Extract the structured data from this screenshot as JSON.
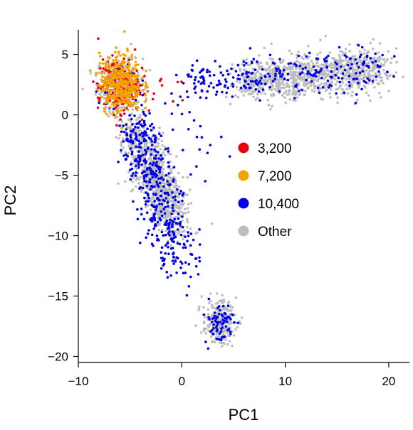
{
  "chart_data": {
    "type": "scatter",
    "title": "",
    "xlabel": "PC1",
    "ylabel": "PC2",
    "xlim": [
      -10,
      22
    ],
    "ylim": [
      -20.5,
      6.8
    ],
    "xticks": [
      -10,
      0,
      10,
      20
    ],
    "yticks": [
      5,
      0,
      -5,
      -10,
      -15,
      -20
    ],
    "xtick_labels": [
      "−10",
      "0",
      "10",
      "20"
    ],
    "ytick_labels": [
      "5",
      "0",
      "−5",
      "−10",
      "−15",
      "−20"
    ],
    "grid": false,
    "legend": {
      "placement": "center",
      "entries": [
        {
          "label": "3,200",
          "color": "#e8000b"
        },
        {
          "label": "7,200",
          "color": "#f5a100"
        },
        {
          "label": "10,400",
          "color": "#0000e6"
        },
        {
          "label": "Other",
          "color": "#bdbdbd"
        }
      ]
    },
    "series": [
      {
        "name": "Other",
        "color": "#bdbdbd",
        "clusters": [
          {
            "cx": -6.0,
            "cy": 2.3,
            "sx": 1.1,
            "sy": 1.2,
            "n": 220
          },
          {
            "segment": [
              [
                6,
                2.7
              ],
              [
                19.5,
                3.8
              ]
            ],
            "spread": 0.9,
            "n": 950
          },
          {
            "segment": [
              [
                -4.5,
                -1.5
              ],
              [
                -0.5,
                -9.0
              ]
            ],
            "spread": 0.9,
            "n": 850
          },
          {
            "cx": 3.6,
            "cy": -17.1,
            "sx": 0.8,
            "sy": 0.9,
            "n": 230
          }
        ]
      },
      {
        "name": "3,200",
        "color": "#e8000b",
        "clusters": [
          {
            "cx": -6.1,
            "cy": 2.4,
            "sx": 1.0,
            "sy": 1.1,
            "n": 230
          },
          {
            "cx": -2.5,
            "cy": 2.2,
            "sx": 2.0,
            "sy": 0.8,
            "n": 12
          }
        ]
      },
      {
        "name": "7,200",
        "color": "#f5a100",
        "clusters": [
          {
            "cx": -5.9,
            "cy": 2.6,
            "sx": 1.0,
            "sy": 1.2,
            "n": 420
          }
        ]
      },
      {
        "name": "10,400",
        "color": "#0000e6",
        "clusters": [
          {
            "cx": -6.0,
            "cy": 2.3,
            "sx": 1.0,
            "sy": 1.1,
            "n": 60
          },
          {
            "segment": [
              [
                -4.6,
                -0.8
              ],
              [
                -0.2,
                -12.5
              ]
            ],
            "spread": 1.0,
            "n": 430
          },
          {
            "segment": [
              [
                0.5,
                3.0
              ],
              [
                19.5,
                3.8
              ]
            ],
            "spread": 0.8,
            "n": 270
          },
          {
            "cx": 3.6,
            "cy": -17.2,
            "sx": 0.7,
            "sy": 0.9,
            "n": 75
          },
          {
            "cx": 0.0,
            "cy": -1.5,
            "sx": 2.2,
            "sy": 1.8,
            "n": 35
          }
        ]
      }
    ]
  }
}
